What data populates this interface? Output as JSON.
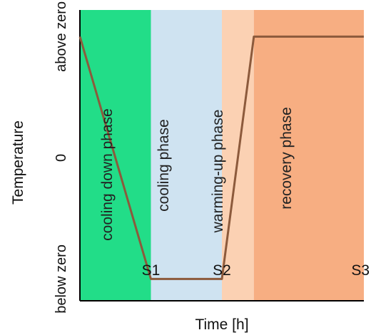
{
  "chart_data": {
    "type": "line",
    "xlabel": "Time [h]",
    "ylabel": "Temperature",
    "y_ticks": [
      {
        "label": "above zero",
        "value": 1
      },
      {
        "label": "0",
        "value": 0
      },
      {
        "label": "below zero",
        "value": -1
      }
    ],
    "x_markers": [
      {
        "label": "S1",
        "x": 1
      },
      {
        "label": "S2",
        "x": 2
      },
      {
        "label": "S3",
        "x": 4
      }
    ],
    "phases": [
      {
        "label": "cooling down phase",
        "x_start": 0,
        "x_end": 1,
        "color": "#22dd88"
      },
      {
        "label": "cooling phase",
        "x_start": 1,
        "x_end": 2,
        "color": "#cfe3f1"
      },
      {
        "label": "warming-up phase",
        "x_start": 2,
        "x_end": 2.45,
        "color": "#fbd1b3"
      },
      {
        "label": "recovery phase",
        "x_start": 2.45,
        "x_end": 4,
        "color": "#f7ae82"
      }
    ],
    "series": [
      {
        "color": "#8c5a3c",
        "points": [
          {
            "x": 0,
            "y": 1
          },
          {
            "x": 1,
            "y": -1
          },
          {
            "x": 2,
            "y": -1
          },
          {
            "x": 2.45,
            "y": 1
          },
          {
            "x": 4,
            "y": 1
          }
        ]
      }
    ],
    "xlim": [
      0,
      4
    ],
    "ylim": [
      -1.18,
      1.22
    ],
    "grid": false,
    "legend": "none"
  }
}
